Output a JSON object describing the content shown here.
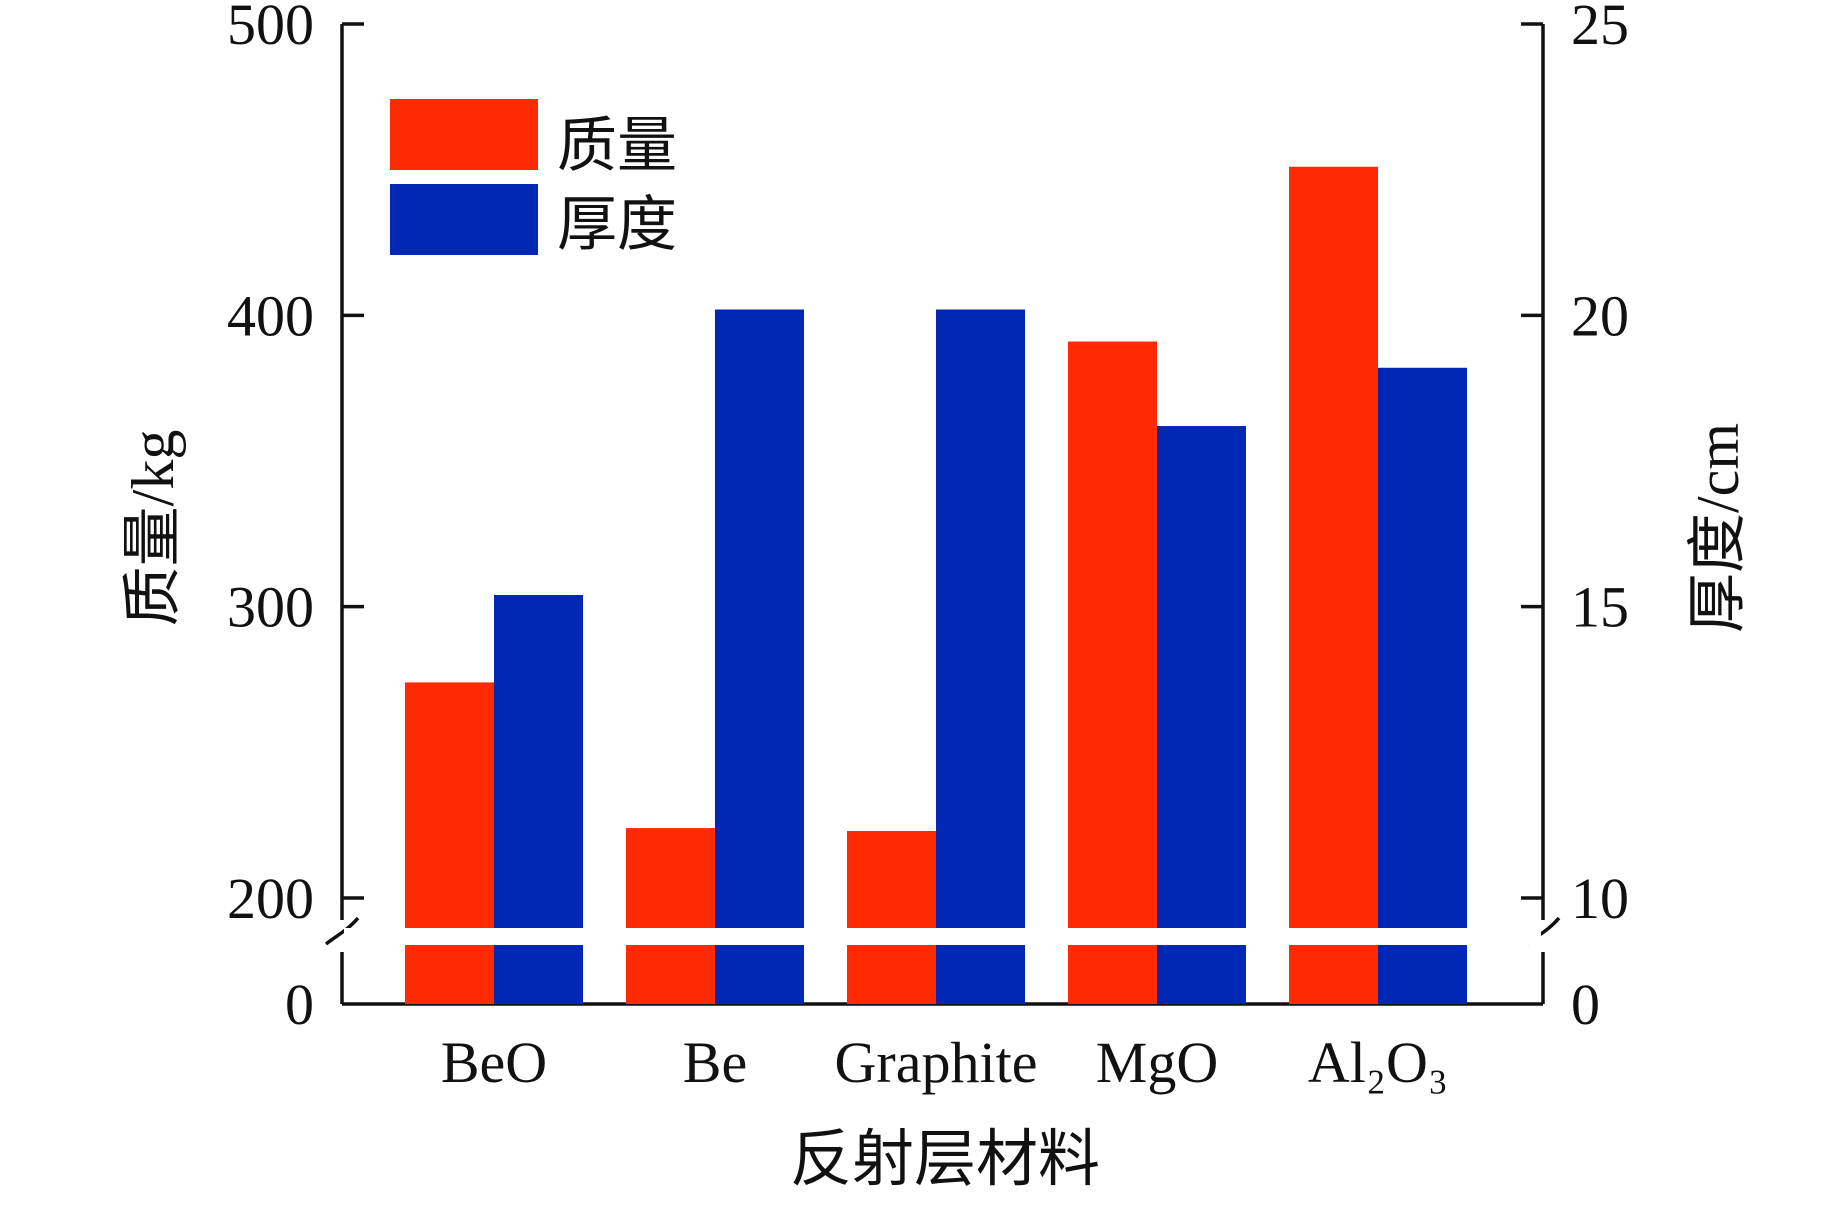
{
  "chart_data": {
    "type": "bar",
    "categories": [
      "BeO",
      "Be",
      "Graphite",
      "MgO",
      "Al₂O₃"
    ],
    "series": [
      {
        "name": "质量",
        "axis": "left",
        "color": "#ff2a00",
        "values": [
          274,
          224,
          223,
          391,
          451
        ]
      },
      {
        "name": "厚度",
        "axis": "right",
        "color": "#0028b4",
        "values": [
          15.2,
          20.1,
          20.1,
          18.1,
          19.1
        ]
      }
    ],
    "xlabel": "反射层材料",
    "ylabel": "质量/kg",
    "y2label": "厚度/cm",
    "ylim": [
      0,
      500
    ],
    "y2lim": [
      0,
      25
    ],
    "y_axis_break": [
      0,
      200
    ],
    "y2_axis_break": [
      0,
      10
    ],
    "yticks": [
      "0",
      "200",
      "300",
      "400",
      "500"
    ],
    "y2ticks": [
      "0",
      "10",
      "15",
      "20",
      "25"
    ],
    "legend_position": "top-left",
    "grid": false
  }
}
